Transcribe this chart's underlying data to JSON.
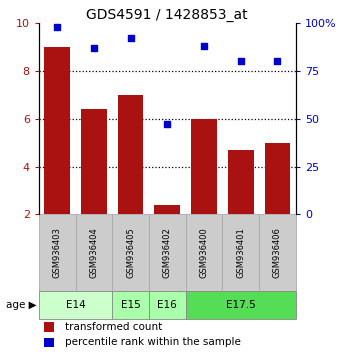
{
  "title": "GDS4591 / 1428853_at",
  "samples": [
    "GSM936403",
    "GSM936404",
    "GSM936405",
    "GSM936402",
    "GSM936400",
    "GSM936401",
    "GSM936406"
  ],
  "bar_values": [
    9.0,
    6.4,
    7.0,
    2.4,
    6.0,
    4.7,
    5.0
  ],
  "scatter_values": [
    98,
    87,
    92,
    47,
    88,
    80,
    80
  ],
  "bar_color": "#aa1111",
  "scatter_color": "#0000cc",
  "bar_bottom": 2.0,
  "ylim_left": [
    2,
    10
  ],
  "ylim_right": [
    0,
    100
  ],
  "yticks_left": [
    2,
    4,
    6,
    8,
    10
  ],
  "ytick_labels_left": [
    "2",
    "4",
    "6",
    "8",
    "10"
  ],
  "yticks_right": [
    0,
    25,
    50,
    75,
    100
  ],
  "ytick_labels_right": [
    "0",
    "25",
    "50",
    "75",
    "100%"
  ],
  "age_groups": [
    {
      "label": "E14",
      "span": [
        0,
        1
      ],
      "color": "#ccffcc"
    },
    {
      "label": "E15",
      "span": [
        2,
        2
      ],
      "color": "#aaffaa"
    },
    {
      "label": "E16",
      "span": [
        3,
        3
      ],
      "color": "#aaffaa"
    },
    {
      "label": "E17.5",
      "span": [
        4,
        6
      ],
      "color": "#55dd55"
    }
  ],
  "legend_bar_label": "transformed count",
  "legend_scatter_label": "percentile rank within the sample",
  "bar_color_legend": "#aa1111",
  "scatter_color_legend": "#0000cc",
  "bar_width": 0.7,
  "sample_box_color": "#cccccc",
  "sample_box_edge": "#aaaaaa"
}
